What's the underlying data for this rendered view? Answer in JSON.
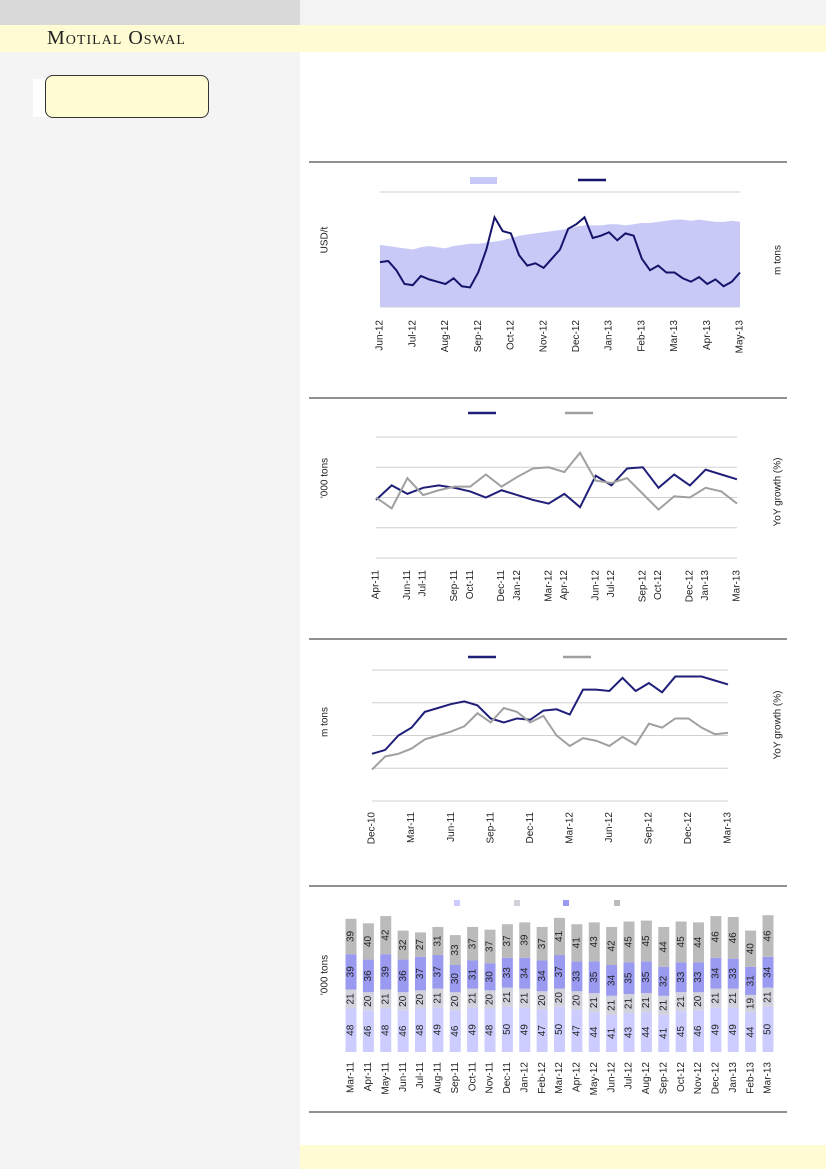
{
  "header": {
    "brand": "Motilal Oswal"
  },
  "chart_data": [
    {
      "type": "line",
      "y_label": "USD/t",
      "y2_label": "m tons",
      "categories": [
        "Jun-12",
        null,
        null,
        null,
        "Jul-12",
        null,
        null,
        null,
        "Aug-12",
        null,
        null,
        null,
        "Sep-12",
        null,
        null,
        null,
        "Oct-12",
        null,
        null,
        null,
        "Nov-12",
        null,
        null,
        null,
        "Dec-12",
        null,
        null,
        null,
        "Jan-13",
        null,
        null,
        null,
        "Feb-13",
        null,
        null,
        null,
        "Mar-13",
        null,
        null,
        null,
        "Apr-13",
        null,
        null,
        null,
        "May-13"
      ],
      "series": [
        {
          "style": "area",
          "color": "#c9c9f7",
          "values": [
            54,
            53,
            52,
            51,
            50,
            52,
            53,
            52,
            51,
            53,
            54,
            55,
            55,
            56,
            57,
            58,
            60,
            62,
            63,
            64,
            65,
            66,
            67,
            68,
            70,
            71,
            71,
            71,
            72,
            72,
            71,
            72,
            73,
            73,
            74,
            75,
            76,
            76,
            75,
            76,
            75,
            74,
            74,
            75,
            74
          ]
        },
        {
          "style": "line",
          "color": "#14146b",
          "values": [
            39,
            40,
            32,
            20,
            19,
            27,
            24,
            22,
            20,
            25,
            18,
            17,
            30,
            50,
            78,
            66,
            64,
            45,
            36,
            38,
            34,
            42,
            50,
            68,
            72,
            78,
            60,
            62,
            65,
            58,
            64,
            62,
            42,
            32,
            36,
            30,
            30,
            25,
            22,
            26,
            20,
            24,
            18,
            22,
            30
          ]
        }
      ],
      "ylim": [
        0,
        100
      ],
      "yticks": [
        0,
        100
      ],
      "grid": true
    },
    {
      "type": "line",
      "y_label": "'000 tons",
      "y2_label": "YoY growth (%)",
      "categories": [
        "Apr-11",
        null,
        "Jun-11",
        "Jul-11",
        null,
        "Sep-11",
        "Oct-11",
        null,
        "Dec-11",
        "Jan-12",
        null,
        "Mar-12",
        "Apr-12",
        null,
        "Jun-12",
        "Jul-12",
        null,
        "Sep-12",
        "Oct-12",
        null,
        "Dec-12",
        "Jan-13",
        null,
        "Mar-13"
      ],
      "series": [
        {
          "style": "line",
          "color": "#1f1f7a",
          "values": [
            48,
            60,
            53,
            58,
            60,
            58,
            55,
            50,
            56,
            52,
            48,
            45,
            53,
            42,
            68,
            60,
            74,
            75,
            58,
            69,
            60,
            73,
            69,
            65
          ]
        },
        {
          "style": "line",
          "color": "#a0a0a0",
          "values": [
            50,
            41,
            66,
            52,
            56,
            59,
            59,
            69,
            59,
            67,
            74,
            75,
            71,
            87,
            64,
            62,
            66,
            53,
            40,
            51,
            50,
            58,
            55,
            45
          ]
        }
      ],
      "ylim": [
        0,
        100
      ],
      "yticks": [
        0,
        25,
        50,
        75,
        100
      ],
      "grid": true
    },
    {
      "type": "line",
      "y_label": "m tons",
      "y2_label": "YoY growth (%)",
      "categories": [
        "Dec-10",
        null,
        null,
        "Mar-11",
        null,
        null,
        "Jun-11",
        null,
        null,
        "Sep-11",
        null,
        null,
        "Dec-11",
        null,
        null,
        "Mar-12",
        null,
        null,
        "Jun-12",
        null,
        null,
        "Sep-12",
        null,
        null,
        "Dec-12",
        null,
        null,
        "Mar-13"
      ],
      "series": [
        {
          "style": "line",
          "color": "#1f1f7a",
          "values": [
            36,
            39,
            50,
            56,
            68,
            71,
            74,
            76,
            73,
            63,
            60,
            63,
            62,
            69,
            70,
            66,
            85,
            85,
            84,
            94,
            84,
            90,
            83,
            95,
            95,
            95,
            92,
            89
          ]
        },
        {
          "style": "line",
          "color": "#a0a0a0",
          "values": [
            24,
            34,
            36,
            40,
            47,
            50,
            53,
            57,
            67,
            60,
            71,
            68,
            60,
            65,
            50,
            42,
            48,
            46,
            42,
            49,
            43,
            59,
            56,
            63,
            63,
            56,
            51,
            52
          ]
        }
      ],
      "ylim": [
        0,
        100
      ],
      "yticks": [
        0,
        25,
        50,
        75,
        100
      ],
      "grid": true
    },
    {
      "type": "bar",
      "stacked": true,
      "y_label": "'000 tons",
      "categories": [
        "Mar-11",
        "Apr-11",
        "May-11",
        "Jun-11",
        "Jul-11",
        "Aug-11",
        "Sep-11",
        "Oct-11",
        "Nov-11",
        "Dec-11",
        "Jan-12",
        "Feb-12",
        "Mar-12",
        "Apr-12",
        "May-12",
        "Jun-12",
        "Jul-12",
        "Aug-12",
        "Sep-12",
        "Oct-12",
        "Nov-12",
        "Dec-12",
        "Jan-13",
        "Feb-13",
        "Mar-13"
      ],
      "series": [
        {
          "color": "#ccccff",
          "values": [
            48,
            46,
            48,
            46,
            48,
            49,
            46,
            49,
            48,
            50,
            49,
            47,
            50,
            47,
            44,
            41,
            43,
            44,
            41,
            45,
            46,
            49,
            49,
            44,
            50
          ]
        },
        {
          "color": "#d2d2dc",
          "values": [
            21,
            20,
            21,
            20,
            20,
            21,
            20,
            21,
            20,
            21,
            21,
            20,
            20,
            20,
            21,
            21,
            21,
            21,
            21,
            21,
            20,
            21,
            21,
            19,
            21
          ]
        },
        {
          "color": "#9a9af0",
          "values": [
            39,
            36,
            39,
            36,
            37,
            37,
            30,
            31,
            30,
            33,
            34,
            34,
            37,
            33,
            35,
            34,
            35,
            35,
            32,
            33,
            33,
            34,
            33,
            31,
            34
          ]
        },
        {
          "color": "#bbbbbb",
          "values": [
            39,
            40,
            42,
            32,
            27,
            31,
            33,
            37,
            37,
            37,
            39,
            37,
            41,
            41,
            43,
            42,
            45,
            45,
            44,
            45,
            44,
            46,
            46,
            40,
            46
          ]
        }
      ],
      "ylim": [
        0,
        160
      ],
      "grid": false
    }
  ]
}
